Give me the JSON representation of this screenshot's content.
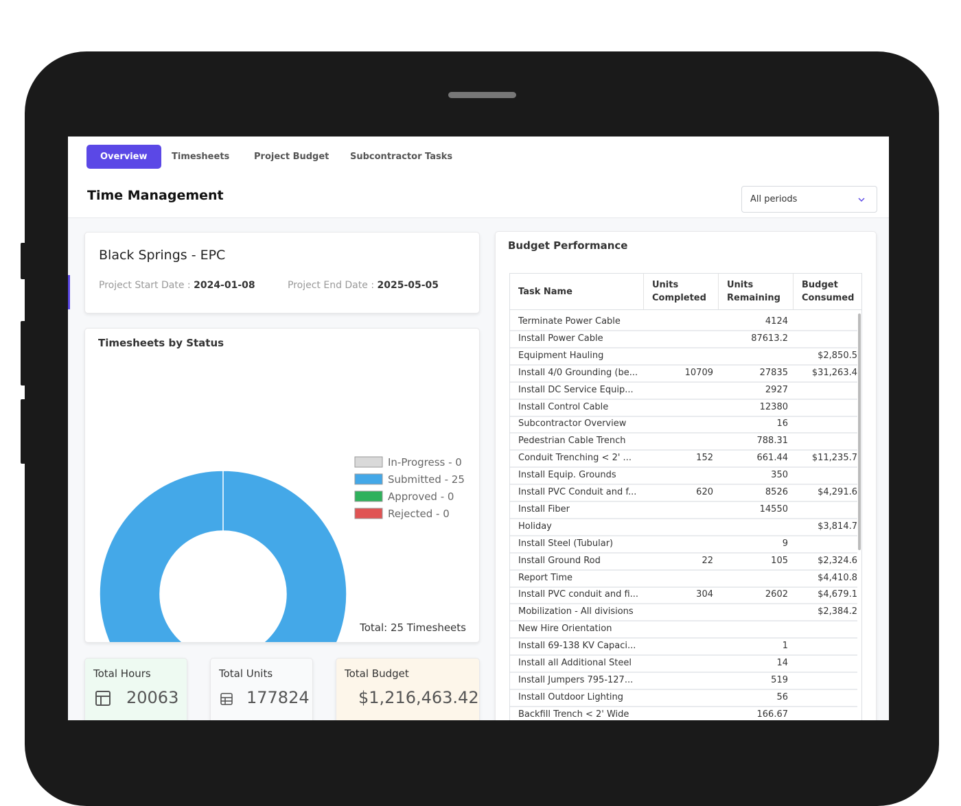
{
  "tabs": [
    "Overview",
    "Timesheets",
    "Project Budget",
    "Subcontractor Tasks"
  ],
  "header": {
    "title": "Time Management",
    "period": "All periods"
  },
  "project": {
    "name": "Black Springs - EPC",
    "start_label": "Project Start Date : ",
    "start": "2024-01-08",
    "end_label": "Project End Date : ",
    "end": "2025-05-05"
  },
  "chart_data": {
    "type": "donut",
    "title": "Timesheets by Status",
    "categories": [
      "In-Progress - 0",
      "Submitted - 25",
      "Approved - 0",
      "Rejected - 0"
    ],
    "values": [
      0,
      25,
      0,
      0
    ],
    "colors": [
      "#d9d9d9",
      "#44a8e8",
      "#2fb15c",
      "#e05353"
    ],
    "total_label": "Total: 25 Timesheets"
  },
  "stats": [
    {
      "label": "Total Hours",
      "value": 20063
    },
    {
      "label": "Total Units",
      "value": 177824
    },
    {
      "label": "Total Budget",
      "value": "$1,216,463.42"
    }
  ],
  "table": {
    "title": "Budget Performance",
    "columns": [
      "Task Name",
      "Units Completed",
      "Units Remaining",
      "Budget Consumed"
    ],
    "rows": [
      [
        "Terminate Power Cable",
        null,
        4124,
        null
      ],
      [
        "Install Power Cable",
        null,
        87613.2,
        null
      ],
      [
        "Equipment Hauling",
        null,
        null,
        "$2,850.5"
      ],
      [
        "Install 4/0 Grounding (be...",
        10709,
        27835,
        "$31,263.4"
      ],
      [
        "Install DC Service Equip...",
        null,
        2927,
        null
      ],
      [
        "Install Control Cable",
        null,
        12380,
        null
      ],
      [
        "Subcontractor Overview",
        null,
        16,
        null
      ],
      [
        "Pedestrian Cable Trench",
        null,
        788.31,
        null
      ],
      [
        "Conduit Trenching < 2' ...",
        152,
        661.44,
        "$11,235.7"
      ],
      [
        "Install Equip. Grounds",
        null,
        350,
        null
      ],
      [
        "Install PVC Conduit and f...",
        620,
        8526,
        "$4,291.6"
      ],
      [
        "Install Fiber",
        null,
        14550,
        null
      ],
      [
        "Holiday",
        null,
        null,
        "$3,814.7"
      ],
      [
        "Install Steel (Tubular)",
        null,
        9,
        null
      ],
      [
        "Install Ground Rod",
        22,
        105,
        "$2,324.6"
      ],
      [
        "Report Time",
        null,
        null,
        "$4,410.8"
      ],
      [
        "Install PVC conduit and fi...",
        304,
        2602,
        "$4,679.1"
      ],
      [
        "Mobilization - All divisions",
        null,
        null,
        "$2,384.2"
      ],
      [
        "New Hire Orientation",
        null,
        null,
        null
      ],
      [
        "Install 69-138 KV Capaci...",
        null,
        1,
        null
      ],
      [
        "Install all Additional Steel",
        null,
        14,
        null
      ],
      [
        "Install Jumpers 795-127...",
        null,
        519,
        null
      ],
      [
        "Install Outdoor Lighting",
        null,
        56,
        null
      ],
      [
        "Backfill Trench < 2' Wide",
        null,
        166.67,
        null
      ]
    ]
  }
}
